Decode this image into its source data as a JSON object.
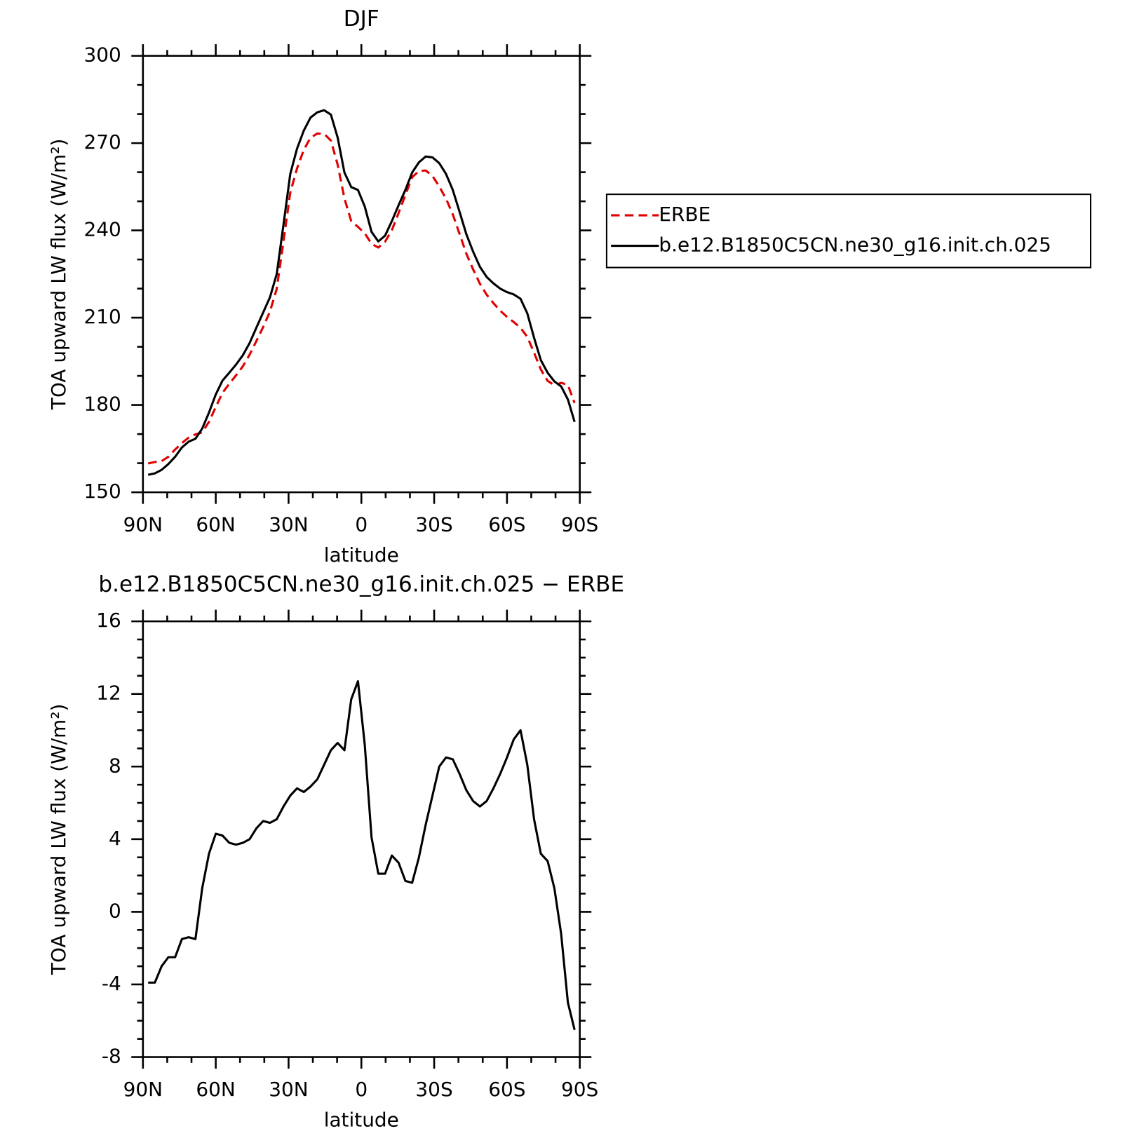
{
  "chart_data": [
    {
      "type": "line",
      "title": "DJF",
      "xlabel": "latitude",
      "ylabel": "TOA upward LW flux (W/m²)",
      "x": [
        87.86,
        85.1,
        82.31,
        79.53,
        76.74,
        73.95,
        71.16,
        68.37,
        65.58,
        62.79,
        60.0,
        57.21,
        54.42,
        51.63,
        48.84,
        46.05,
        43.25,
        40.46,
        37.67,
        34.88,
        32.09,
        29.3,
        26.51,
        23.72,
        20.93,
        18.14,
        15.35,
        12.56,
        9.77,
        6.98,
        4.19,
        1.4,
        -1.4,
        -4.19,
        -6.98,
        -9.77,
        -12.56,
        -15.35,
        -18.14,
        -20.93,
        -23.72,
        -26.51,
        -29.3,
        -32.09,
        -34.88,
        -37.67,
        -40.46,
        -43.25,
        -46.05,
        -48.84,
        -51.63,
        -54.42,
        -57.21,
        -60.0,
        -62.79,
        -65.58,
        -68.37,
        -71.16,
        -73.95,
        -76.74,
        -79.53,
        -82.31,
        -85.1,
        -87.86
      ],
      "series": [
        {
          "name": "ERBE",
          "color": "#e00000",
          "linestyle": "dashed",
          "values": [
            159.9,
            160.4,
            160.7,
            162.2,
            164.7,
            166.9,
            168.8,
            169.9,
            170.6,
            174.2,
            179.3,
            184.2,
            187.3,
            190.2,
            193.3,
            197.3,
            202,
            206.8,
            212.1,
            219.9,
            236.2,
            253,
            261.3,
            267.7,
            271.9,
            273.3,
            273.2,
            270.9,
            262.6,
            251,
            243.2,
            241.2,
            239,
            235.4,
            234.1,
            236.1,
            240.1,
            246,
            252.2,
            258.3,
            260.4,
            260.6,
            258.7,
            255.1,
            250.9,
            245.5,
            238.8,
            232,
            226.6,
            221.7,
            217.9,
            215,
            212.4,
            210.3,
            208.5,
            206.5,
            203.4,
            198,
            192.2,
            188.3,
            186.8,
            187.6,
            186.9,
            180.7
          ]
        },
        {
          "name": "b.e12.B1850C5CN.ne30_g16.init.ch.025",
          "color": "#000000",
          "linestyle": "solid",
          "values": [
            156,
            156.5,
            157.7,
            159.7,
            162.2,
            165.4,
            167.4,
            168.4,
            171.9,
            177.4,
            183.6,
            188.4,
            191.1,
            193.9,
            197.1,
            201.3,
            206.6,
            211.8,
            217,
            225,
            242,
            259.4,
            268.1,
            274.3,
            278.8,
            280.6,
            281.3,
            279.8,
            271.9,
            259.9,
            254.9,
            253.9,
            248.2,
            239.5,
            236.2,
            238.2,
            243.2,
            248.7,
            253.9,
            259.9,
            263.4,
            265.4,
            265.1,
            263.1,
            259.4,
            253.9,
            246.4,
            238.7,
            232.7,
            227.5,
            224,
            221.8,
            220,
            218.8,
            218,
            216.5,
            211.5,
            203.1,
            195.4,
            191.1,
            188.1,
            186.4,
            181.9,
            174.2
          ]
        }
      ],
      "xlim": [
        90,
        -90
      ],
      "xticks": [
        {
          "value": 90,
          "label": "90N"
        },
        {
          "value": 60,
          "label": "60N"
        },
        {
          "value": 30,
          "label": "30N"
        },
        0,
        {
          "value": -30,
          "label": "30S"
        },
        {
          "value": -60,
          "label": "60S"
        },
        {
          "value": -90,
          "label": "90S"
        }
      ],
      "ylim": [
        150,
        300
      ],
      "yticks": [
        150,
        180,
        210,
        240,
        270,
        300
      ],
      "legend": "right"
    },
    {
      "type": "line",
      "title": "b.e12.B1850C5CN.ne30_g16.init.ch.025 − ERBE",
      "xlabel": "latitude",
      "ylabel": "TOA upward LW flux (W/m²)",
      "x": [
        87.86,
        85.1,
        82.31,
        79.53,
        76.74,
        73.95,
        71.16,
        68.37,
        65.58,
        62.79,
        60.0,
        57.21,
        54.42,
        51.63,
        48.84,
        46.05,
        43.25,
        40.46,
        37.67,
        34.88,
        32.09,
        29.3,
        26.51,
        23.72,
        20.93,
        18.14,
        15.35,
        12.56,
        9.77,
        6.98,
        4.19,
        1.4,
        -1.4,
        -4.19,
        -6.98,
        -9.77,
        -12.56,
        -15.35,
        -18.14,
        -20.93,
        -23.72,
        -26.51,
        -29.3,
        -32.09,
        -34.88,
        -37.67,
        -40.46,
        -43.25,
        -46.05,
        -48.84,
        -51.63,
        -54.42,
        -57.21,
        -60.0,
        -62.79,
        -65.58,
        -68.37,
        -71.16,
        -73.95,
        -76.74,
        -79.53,
        -82.31,
        -85.1,
        -87.86
      ],
      "color": "#000000",
      "values": [
        -3.9,
        -3.9,
        -3.0,
        -2.5,
        -2.5,
        -1.5,
        -1.4,
        -1.5,
        1.3,
        3.2,
        4.3,
        4.2,
        3.8,
        3.7,
        3.8,
        4.0,
        4.6,
        5.0,
        4.9,
        5.1,
        5.8,
        6.4,
        6.8,
        6.6,
        6.9,
        7.3,
        8.1,
        8.9,
        9.3,
        8.9,
        11.7,
        12.7,
        9.2,
        4.1,
        2.1,
        2.1,
        3.1,
        2.7,
        1.7,
        1.6,
        3.0,
        4.8,
        6.4,
        8.0,
        8.5,
        8.4,
        7.6,
        6.7,
        6.1,
        5.8,
        6.1,
        6.8,
        7.6,
        8.5,
        9.5,
        10.0,
        8.1,
        5.1,
        3.2,
        2.8,
        1.3,
        -1.2,
        -5.0,
        -6.5
      ],
      "xlim": [
        90,
        -90
      ],
      "xticks": [
        {
          "value": 90,
          "label": "90N"
        },
        {
          "value": 60,
          "label": "60N"
        },
        {
          "value": 30,
          "label": "30N"
        },
        0,
        {
          "value": -30,
          "label": "30S"
        },
        {
          "value": -60,
          "label": "60S"
        },
        {
          "value": -90,
          "label": "90S"
        }
      ],
      "ylim": [
        -8,
        16
      ],
      "yticks": [
        -8,
        -4,
        0,
        4,
        8,
        12,
        16
      ]
    }
  ]
}
